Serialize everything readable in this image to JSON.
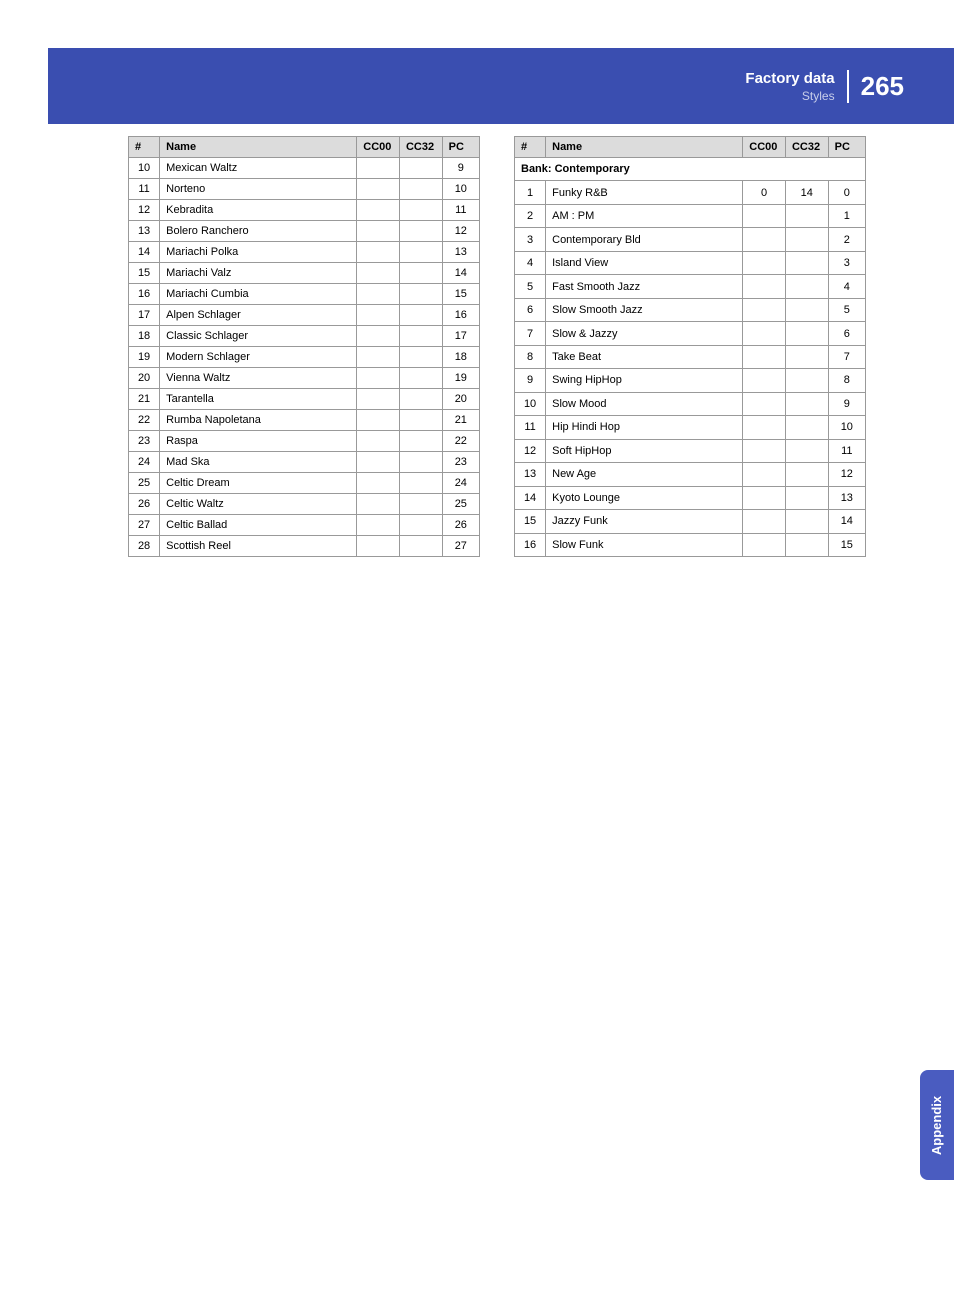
{
  "header": {
    "title": "Factory data",
    "subtitle": "Styles",
    "page": "265"
  },
  "sideTab": "Appendix",
  "columns": {
    "num": "#",
    "name": "Name",
    "cc00": "CC00",
    "cc32": "CC32",
    "pc": "PC"
  },
  "leftTable": [
    {
      "num": "10",
      "name": "Mexican Waltz",
      "cc00": "",
      "cc32": "",
      "pc": "9"
    },
    {
      "num": "11",
      "name": "Norteno",
      "cc00": "",
      "cc32": "",
      "pc": "10"
    },
    {
      "num": "12",
      "name": "Kebradita",
      "cc00": "",
      "cc32": "",
      "pc": "11"
    },
    {
      "num": "13",
      "name": "Bolero Ranchero",
      "cc00": "",
      "cc32": "",
      "pc": "12"
    },
    {
      "num": "14",
      "name": "Mariachi Polka",
      "cc00": "",
      "cc32": "",
      "pc": "13"
    },
    {
      "num": "15",
      "name": "Mariachi Valz",
      "cc00": "",
      "cc32": "",
      "pc": "14"
    },
    {
      "num": "16",
      "name": "Mariachi Cumbia",
      "cc00": "",
      "cc32": "",
      "pc": "15"
    },
    {
      "num": "17",
      "name": "Alpen Schlager",
      "cc00": "",
      "cc32": "",
      "pc": "16"
    },
    {
      "num": "18",
      "name": "Classic Schlager",
      "cc00": "",
      "cc32": "",
      "pc": "17"
    },
    {
      "num": "19",
      "name": "Modern Schlager",
      "cc00": "",
      "cc32": "",
      "pc": "18"
    },
    {
      "num": "20",
      "name": "Vienna Waltz",
      "cc00": "",
      "cc32": "",
      "pc": "19"
    },
    {
      "num": "21",
      "name": "Tarantella",
      "cc00": "",
      "cc32": "",
      "pc": "20"
    },
    {
      "num": "22",
      "name": "Rumba Napoletana",
      "cc00": "",
      "cc32": "",
      "pc": "21"
    },
    {
      "num": "23",
      "name": "Raspa",
      "cc00": "",
      "cc32": "",
      "pc": "22"
    },
    {
      "num": "24",
      "name": "Mad Ska",
      "cc00": "",
      "cc32": "",
      "pc": "23"
    },
    {
      "num": "25",
      "name": "Celtic Dream",
      "cc00": "",
      "cc32": "",
      "pc": "24"
    },
    {
      "num": "26",
      "name": "Celtic Waltz",
      "cc00": "",
      "cc32": "",
      "pc": "25"
    },
    {
      "num": "27",
      "name": "Celtic Ballad",
      "cc00": "",
      "cc32": "",
      "pc": "26"
    },
    {
      "num": "28",
      "name": "Scottish Reel",
      "cc00": "",
      "cc32": "",
      "pc": "27"
    }
  ],
  "rightBank": "Bank: Contemporary",
  "rightTable": [
    {
      "num": "1",
      "name": "Funky R&B",
      "cc00": "0",
      "cc32": "14",
      "pc": "0"
    },
    {
      "num": "2",
      "name": "AM : PM",
      "cc00": "",
      "cc32": "",
      "pc": "1"
    },
    {
      "num": "3",
      "name": "Contemporary Bld",
      "cc00": "",
      "cc32": "",
      "pc": "2"
    },
    {
      "num": "4",
      "name": "Island View",
      "cc00": "",
      "cc32": "",
      "pc": "3"
    },
    {
      "num": "5",
      "name": "Fast Smooth Jazz",
      "cc00": "",
      "cc32": "",
      "pc": "4"
    },
    {
      "num": "6",
      "name": "Slow Smooth Jazz",
      "cc00": "",
      "cc32": "",
      "pc": "5"
    },
    {
      "num": "7",
      "name": "Slow & Jazzy",
      "cc00": "",
      "cc32": "",
      "pc": "6"
    },
    {
      "num": "8",
      "name": "Take Beat",
      "cc00": "",
      "cc32": "",
      "pc": "7"
    },
    {
      "num": "9",
      "name": "Swing HipHop",
      "cc00": "",
      "cc32": "",
      "pc": "8"
    },
    {
      "num": "10",
      "name": "Slow Mood",
      "cc00": "",
      "cc32": "",
      "pc": "9"
    },
    {
      "num": "11",
      "name": "Hip Hindi Hop",
      "cc00": "",
      "cc32": "",
      "pc": "10"
    },
    {
      "num": "12",
      "name": "Soft HipHop",
      "cc00": "",
      "cc32": "",
      "pc": "11"
    },
    {
      "num": "13",
      "name": "New Age",
      "cc00": "",
      "cc32": "",
      "pc": "12"
    },
    {
      "num": "14",
      "name": "Kyoto Lounge",
      "cc00": "",
      "cc32": "",
      "pc": "13"
    },
    {
      "num": "15",
      "name": "Jazzy Funk",
      "cc00": "",
      "cc32": "",
      "pc": "14"
    },
    {
      "num": "16",
      "name": "Slow Funk",
      "cc00": "",
      "cc32": "",
      "pc": "15"
    }
  ],
  "style": {
    "header_bg": "#3a4eb0",
    "sidetab_bg": "#4a5cc0",
    "th_bg": "#dcdcdc",
    "border_color": "#999",
    "font_size_table": 11
  }
}
